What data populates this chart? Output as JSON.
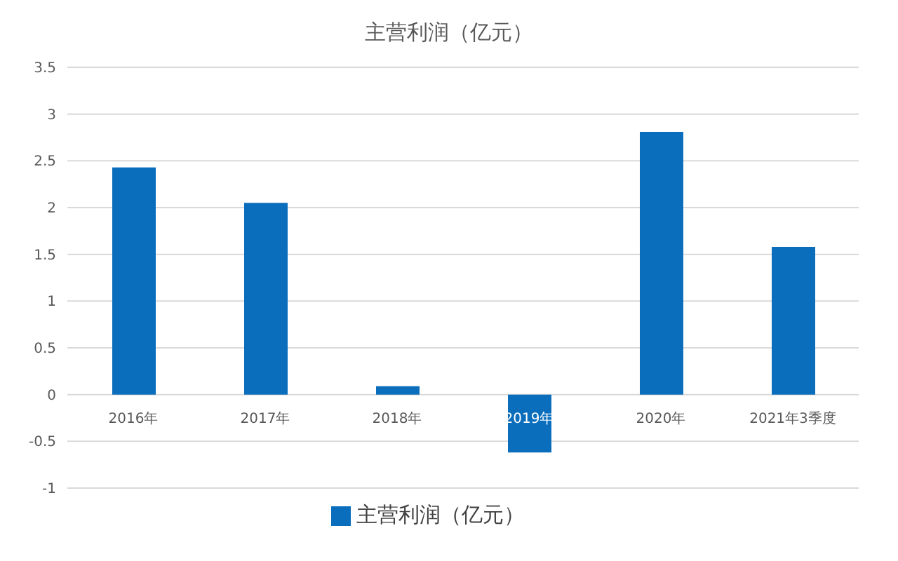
{
  "chart_data": {
    "type": "bar",
    "title": "主营利润（亿元）",
    "categories": [
      "2016年",
      "2017年",
      "2018年",
      "2019年",
      "2020年",
      "2021年3季度"
    ],
    "series": [
      {
        "name": "主营利润（亿元）",
        "color": "#0a6ebd",
        "values": [
          2.43,
          2.05,
          0.09,
          -0.62,
          2.81,
          1.58
        ]
      }
    ],
    "ylim": [
      -1,
      3.5
    ],
    "yticks": [
      -1,
      -0.5,
      0,
      0.5,
      1,
      1.5,
      2,
      2.5,
      3,
      3.5
    ],
    "grid": "y",
    "legend": "bottom"
  }
}
